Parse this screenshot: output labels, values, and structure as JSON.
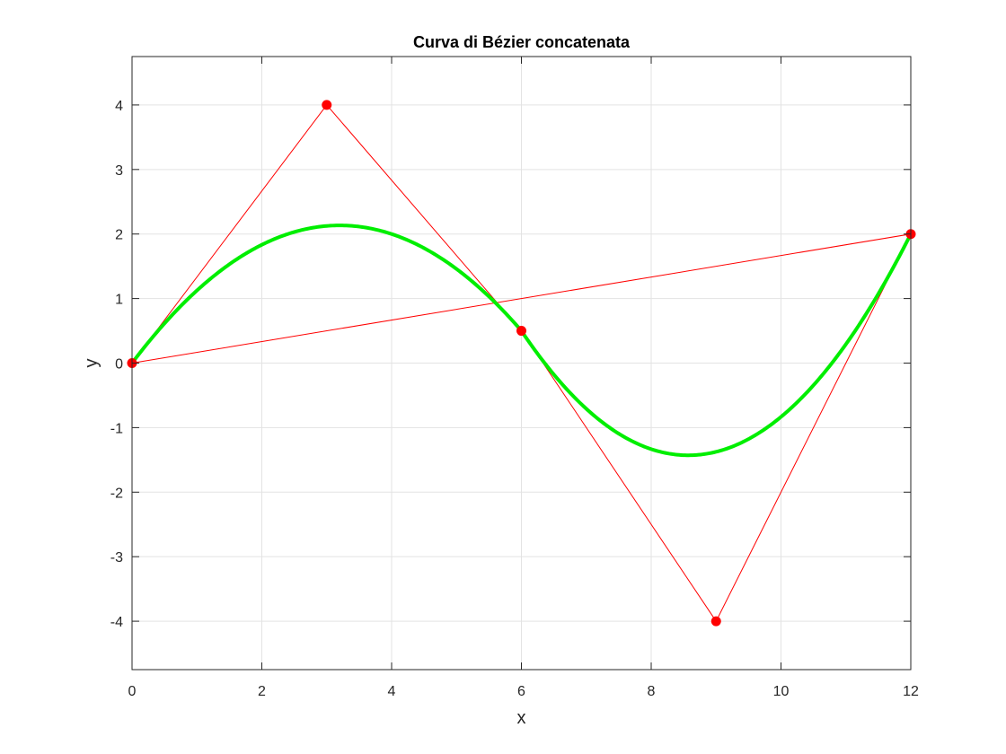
{
  "chart_data": {
    "type": "line",
    "title": "Curva di Bézier concatenata",
    "xlabel": "x",
    "ylabel": "y",
    "xlim": [
      0,
      12
    ],
    "ylim": [
      -4.75,
      4.75
    ],
    "xticks": [
      0,
      2,
      4,
      6,
      8,
      10,
      12
    ],
    "yticks": [
      -4,
      -3,
      -2,
      -1,
      0,
      1,
      2,
      3,
      4
    ],
    "grid": true,
    "colors": {
      "control_polygon": "#ff0000",
      "curve": "#00ee00",
      "grid": "#e3e3e3",
      "axes": "#262626"
    },
    "series": [
      {
        "kind": "control-polygon",
        "x": [
          0,
          3,
          6,
          9,
          12,
          0
        ],
        "y": [
          0,
          4,
          0.5,
          -4,
          2,
          0
        ],
        "marker": "circle"
      },
      {
        "kind": "bezier-curve",
        "segments": [
          {
            "control_points": [
              [
                0,
                0
              ],
              [
                3,
                4
              ],
              [
                6,
                0.5
              ]
            ]
          },
          {
            "control_points": [
              [
                6,
                0.5
              ],
              [
                9,
                -4
              ],
              [
                12,
                2
              ]
            ]
          }
        ]
      }
    ]
  }
}
